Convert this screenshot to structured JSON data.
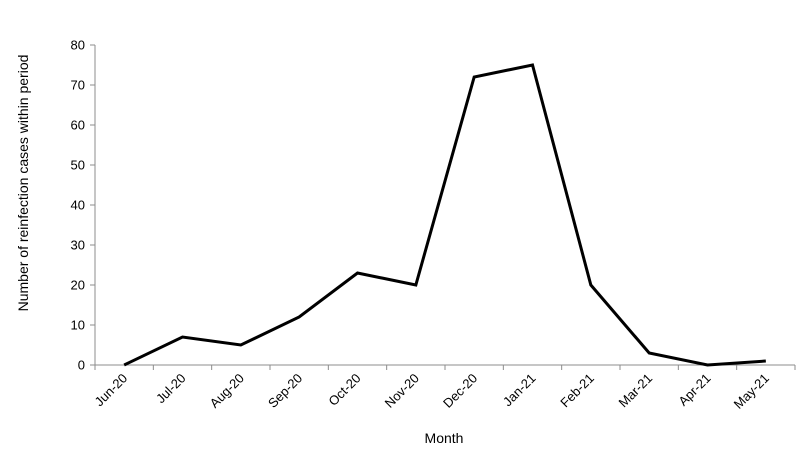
{
  "chart_data": {
    "type": "line",
    "categories": [
      "Jun-20",
      "Jul-20",
      "Aug-20",
      "Sep-20",
      "Oct-20",
      "Nov-20",
      "Dec-20",
      "Jan-21",
      "Feb-21",
      "Mar-21",
      "Apr-21",
      "May-21"
    ],
    "series": [
      {
        "values": [
          0,
          7,
          5,
          12,
          23,
          20,
          72,
          75,
          20,
          3,
          0,
          1
        ],
        "color": "#000000"
      }
    ],
    "xlabel": "Month",
    "ylabel": "Number of reinfection cases within period",
    "ylim": [
      0,
      80
    ],
    "yticks": [
      0,
      10,
      20,
      30,
      40,
      50,
      60,
      70,
      80
    ],
    "grid": false,
    "legend": "none"
  }
}
